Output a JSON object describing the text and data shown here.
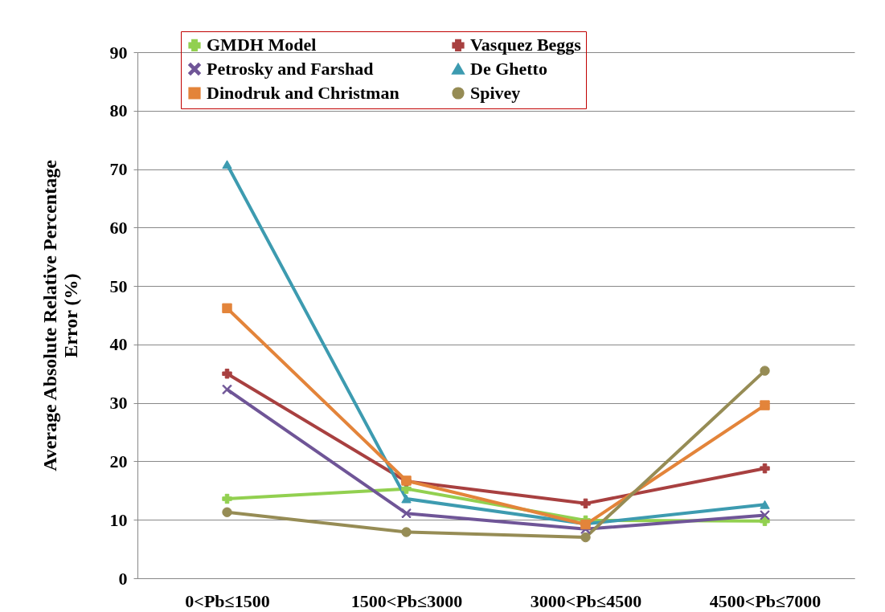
{
  "chart_data": {
    "type": "line",
    "ylabel": "Average Absolute Relative Percentage\nError (%)",
    "categories": [
      "0<Pb≤1500",
      "1500<Pb≤3000",
      "3000<Pb≤4500",
      "4500<Pb≤7000"
    ],
    "ylim": [
      0,
      90
    ],
    "yticks": [
      0,
      10,
      20,
      30,
      40,
      50,
      60,
      70,
      80,
      90
    ],
    "grid": "y",
    "legend": "top",
    "series": [
      {
        "name": "GMDH Model",
        "color": "#92d050",
        "marker": "cross",
        "values": [
          13.6,
          15.3,
          9.9,
          9.8
        ]
      },
      {
        "name": "Vasquez Beggs",
        "color": "#a84040",
        "marker": "cross",
        "values": [
          35.0,
          16.6,
          12.8,
          18.8
        ]
      },
      {
        "name": "Petrosky and Farshad",
        "color": "#6f5597",
        "marker": "x",
        "values": [
          32.3,
          11.1,
          8.4,
          10.8
        ]
      },
      {
        "name": "De Ghetto",
        "color": "#3d9bb0",
        "marker": "triangle",
        "values": [
          70.8,
          13.6,
          9.3,
          12.6
        ]
      },
      {
        "name": "Dinodruk and Christman",
        "color": "#e3843a",
        "marker": "square",
        "values": [
          46.2,
          16.7,
          9.2,
          29.6
        ]
      },
      {
        "name": "Spivey",
        "color": "#968c55",
        "marker": "circle",
        "values": [
          11.3,
          7.9,
          7.0,
          35.5
        ]
      }
    ]
  }
}
